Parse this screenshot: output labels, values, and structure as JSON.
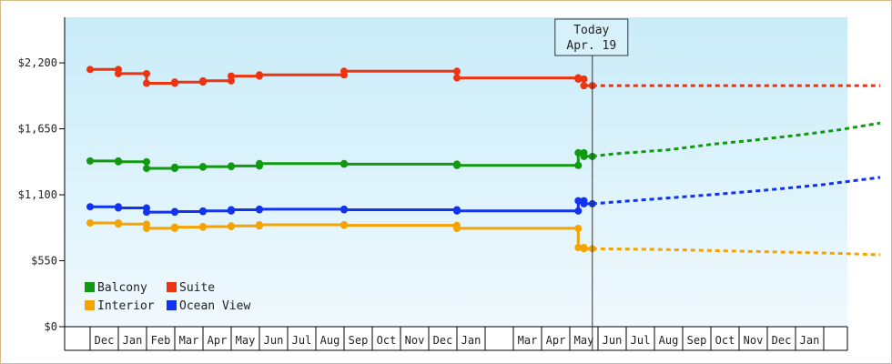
{
  "chart_data": {
    "type": "line",
    "ylabel_ticks": [
      "$0",
      "$550",
      "$1,100",
      "$1,650",
      "$2,200"
    ],
    "ylim": [
      0,
      2200
    ],
    "ytick_values": [
      0,
      550,
      1100,
      1650,
      2200
    ],
    "y_max_display": 2580,
    "x_month_labels": [
      "Dec",
      "Jan",
      "Feb",
      "Mar",
      "Apr",
      "May",
      "Jun",
      "Jul",
      "Aug",
      "Sep",
      "Oct",
      "Nov",
      "Dec",
      "Jan",
      "",
      "Mar",
      "Apr",
      "May",
      "Jun",
      "Jul",
      "Aug",
      "Sep",
      "Oct",
      "Nov",
      "Dec",
      "Jan"
    ],
    "today_marker": {
      "line1": "Today",
      "line2": "Apr. 19",
      "x": 17.8
    },
    "grid": false,
    "legend_position": "bottom-left",
    "series": [
      {
        "name": "Balcony",
        "color": "#119911",
        "historical": [
          [
            0.0,
            1382
          ],
          [
            1.0,
            1382
          ],
          [
            1.0,
            1375
          ],
          [
            2.0,
            1375
          ],
          [
            2.0,
            1320
          ],
          [
            3.0,
            1320
          ],
          [
            3.0,
            1330
          ],
          [
            4.0,
            1330
          ],
          [
            4.0,
            1335
          ],
          [
            5.0,
            1335
          ],
          [
            5.0,
            1340
          ],
          [
            6.0,
            1340
          ],
          [
            6.0,
            1360
          ],
          [
            9.0,
            1360
          ],
          [
            9.0,
            1355
          ],
          [
            13.0,
            1355
          ],
          [
            13.0,
            1345
          ],
          [
            17.3,
            1345
          ],
          [
            17.3,
            1450
          ],
          [
            17.5,
            1450
          ],
          [
            17.5,
            1420
          ],
          [
            17.8,
            1420
          ]
        ],
        "forecast": [
          [
            17.8,
            1420
          ],
          [
            18.5,
            1440
          ],
          [
            20.5,
            1475
          ],
          [
            22.0,
            1520
          ],
          [
            23.5,
            1555
          ],
          [
            25.0,
            1595
          ],
          [
            26.5,
            1640
          ],
          [
            28.0,
            1698
          ]
        ]
      },
      {
        "name": "Suite",
        "color": "#ee3311",
        "historical": [
          [
            0.0,
            2145
          ],
          [
            1.0,
            2145
          ],
          [
            1.0,
            2110
          ],
          [
            2.0,
            2110
          ],
          [
            2.0,
            2030
          ],
          [
            3.0,
            2030
          ],
          [
            3.0,
            2040
          ],
          [
            4.0,
            2040
          ],
          [
            4.0,
            2050
          ],
          [
            5.0,
            2050
          ],
          [
            5.0,
            2090
          ],
          [
            6.0,
            2090
          ],
          [
            6.0,
            2100
          ],
          [
            9.0,
            2100
          ],
          [
            9.0,
            2130
          ],
          [
            13.0,
            2130
          ],
          [
            13.0,
            2075
          ],
          [
            17.3,
            2075
          ],
          [
            17.3,
            2065
          ],
          [
            17.5,
            2065
          ],
          [
            17.5,
            2010
          ],
          [
            17.8,
            2010
          ]
        ],
        "forecast": [
          [
            17.8,
            2010
          ],
          [
            22.0,
            2010
          ],
          [
            28.0,
            2010
          ]
        ]
      },
      {
        "name": "Interior",
        "color": "#f5a300",
        "historical": [
          [
            0.0,
            865
          ],
          [
            1.0,
            865
          ],
          [
            1.0,
            855
          ],
          [
            2.0,
            855
          ],
          [
            2.0,
            820
          ],
          [
            3.0,
            820
          ],
          [
            3.0,
            830
          ],
          [
            4.0,
            830
          ],
          [
            4.0,
            835
          ],
          [
            5.0,
            835
          ],
          [
            5.0,
            840
          ],
          [
            6.0,
            840
          ],
          [
            6.0,
            850
          ],
          [
            9.0,
            850
          ],
          [
            9.0,
            845
          ],
          [
            13.0,
            845
          ],
          [
            13.0,
            820
          ],
          [
            17.3,
            820
          ],
          [
            17.3,
            660
          ],
          [
            17.5,
            660
          ],
          [
            17.5,
            650
          ],
          [
            17.8,
            650
          ]
        ],
        "forecast": [
          [
            17.8,
            650
          ],
          [
            20.0,
            645
          ],
          [
            23.0,
            630
          ],
          [
            26.0,
            615
          ],
          [
            28.0,
            600
          ]
        ]
      },
      {
        "name": "Ocean View",
        "color": "#1133ee",
        "historical": [
          [
            0.0,
            1000
          ],
          [
            1.0,
            1000
          ],
          [
            1.0,
            990
          ],
          [
            2.0,
            990
          ],
          [
            2.0,
            955
          ],
          [
            3.0,
            955
          ],
          [
            3.0,
            960
          ],
          [
            4.0,
            960
          ],
          [
            4.0,
            965
          ],
          [
            5.0,
            965
          ],
          [
            5.0,
            975
          ],
          [
            6.0,
            975
          ],
          [
            6.0,
            980
          ],
          [
            9.0,
            980
          ],
          [
            9.0,
            975
          ],
          [
            13.0,
            975
          ],
          [
            13.0,
            965
          ],
          [
            17.3,
            965
          ],
          [
            17.3,
            1050
          ],
          [
            17.5,
            1050
          ],
          [
            17.5,
            1025
          ],
          [
            17.8,
            1025
          ]
        ],
        "forecast": [
          [
            17.8,
            1025
          ],
          [
            20.0,
            1065
          ],
          [
            22.0,
            1100
          ],
          [
            24.0,
            1140
          ],
          [
            26.0,
            1185
          ],
          [
            28.0,
            1245
          ]
        ]
      }
    ]
  }
}
